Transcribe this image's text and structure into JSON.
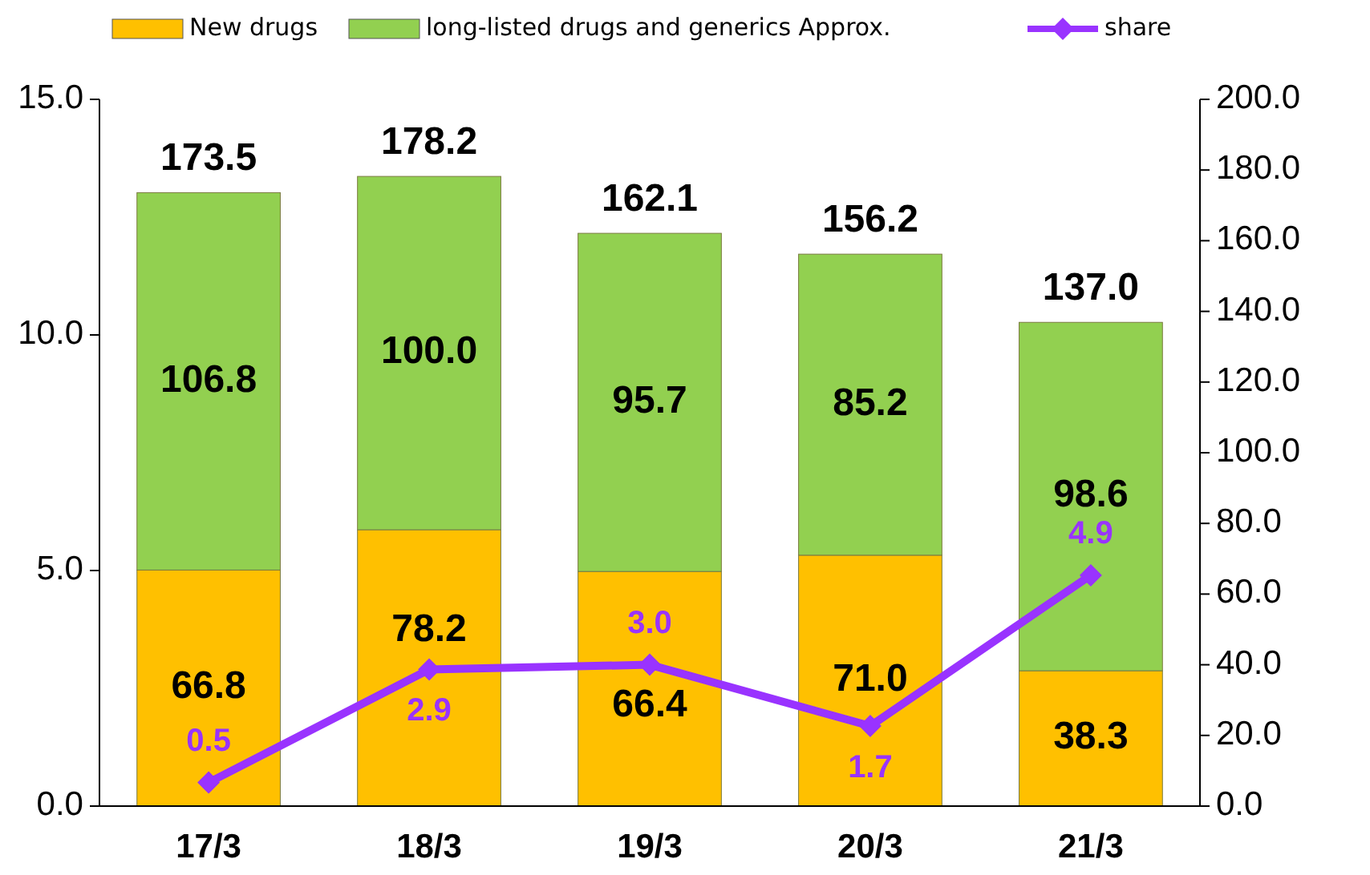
{
  "chart_data": {
    "type": "bar",
    "stacked": true,
    "categories": [
      "17/3",
      "18/3",
      "19/3",
      "20/3",
      "21/3"
    ],
    "series": [
      {
        "name": "New drugs",
        "color": "#ffc000",
        "axis": "y2",
        "values": [
          66.8,
          78.2,
          66.4,
          71.0,
          38.3
        ],
        "value_labels": [
          "66.8",
          "78.2",
          "66.4",
          "71.0",
          "38.3"
        ]
      },
      {
        "name": "long-listed drugs and generics Approx.",
        "color": "#92d050",
        "axis": "y2",
        "values": [
          106.8,
          100.0,
          95.7,
          85.2,
          98.6
        ],
        "value_labels": [
          "106.8",
          "100.0",
          "95.7",
          "85.2",
          "98.6"
        ]
      },
      {
        "name": "share",
        "type": "line",
        "color": "#9933ff",
        "axis": "y",
        "marker": "diamond",
        "values": [
          0.5,
          2.9,
          3.0,
          1.7,
          4.9
        ],
        "value_labels": [
          "0.5",
          "2.9",
          "3.0",
          "1.7",
          "4.9"
        ]
      }
    ],
    "totals": [
      "173.5",
      "178.2",
      "162.1",
      "156.2",
      "137.0"
    ],
    "legend": "top",
    "ylim": [
      0,
      15
    ],
    "yticks": [
      {
        "value": 0,
        "label": "0.0"
      },
      {
        "value": 5,
        "label": "5.0"
      },
      {
        "value": 10,
        "label": "10.0"
      },
      {
        "value": 15,
        "label": "15.0"
      }
    ],
    "y2lim": [
      0,
      200
    ],
    "y2ticks": [
      {
        "value": 0,
        "label": "0.0"
      },
      {
        "value": 20,
        "label": "20.0"
      },
      {
        "value": 40,
        "label": "40.0"
      },
      {
        "value": 60,
        "label": "60.0"
      },
      {
        "value": 80,
        "label": "80.0"
      },
      {
        "value": 100,
        "label": "100.0"
      },
      {
        "value": 120,
        "label": "120.0"
      },
      {
        "value": 140,
        "label": "140.0"
      },
      {
        "value": 160,
        "label": "160.0"
      },
      {
        "value": 180,
        "label": "180.0"
      },
      {
        "value": 200,
        "label": "200.0"
      }
    ]
  }
}
